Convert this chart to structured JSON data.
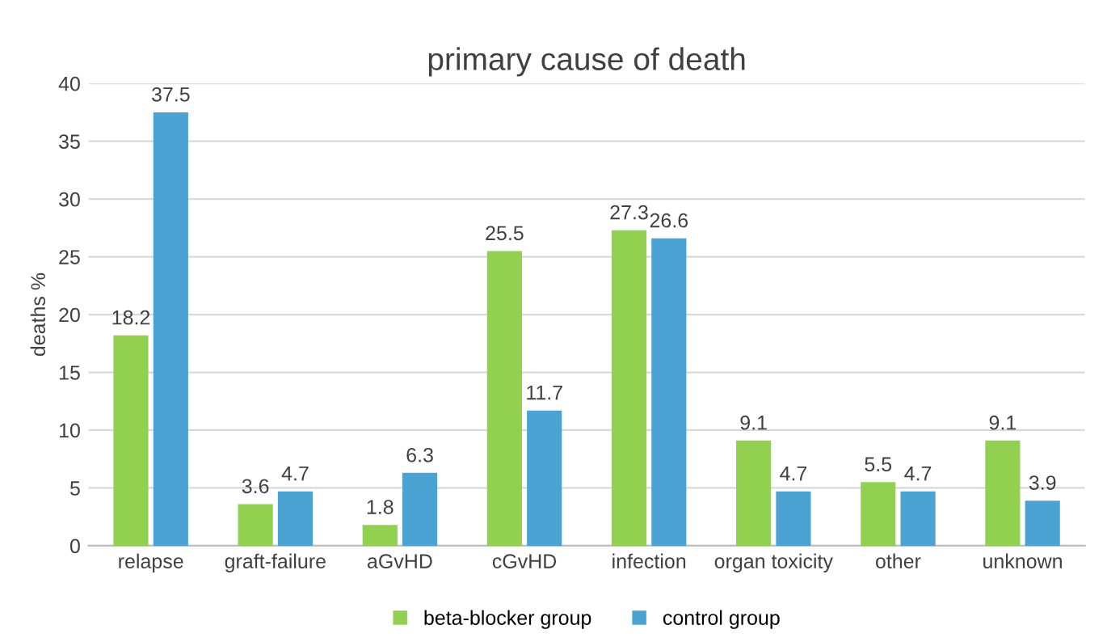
{
  "chart_data": {
    "type": "bar",
    "title": "primary cause of death",
    "ylabel": "deaths %",
    "categories": [
      "relapse",
      "graft-failure",
      "aGvHD",
      "cGvHD",
      "infection",
      "organ toxicity",
      "other",
      "unknown"
    ],
    "series": [
      {
        "name": "beta-blocker group",
        "color": "#92d050",
        "values": [
          18.2,
          3.6,
          1.8,
          25.5,
          27.3,
          9.1,
          5.5,
          9.1
        ]
      },
      {
        "name": "control group",
        "color": "#4ba3d3",
        "values": [
          37.5,
          4.7,
          6.3,
          11.7,
          26.6,
          4.7,
          4.7,
          3.9
        ]
      }
    ],
    "ylim": [
      0,
      40
    ],
    "yticks": [
      0,
      5,
      10,
      15,
      20,
      25,
      30,
      35,
      40
    ],
    "grid": "y",
    "legend": "bottom",
    "data_labels": true
  }
}
